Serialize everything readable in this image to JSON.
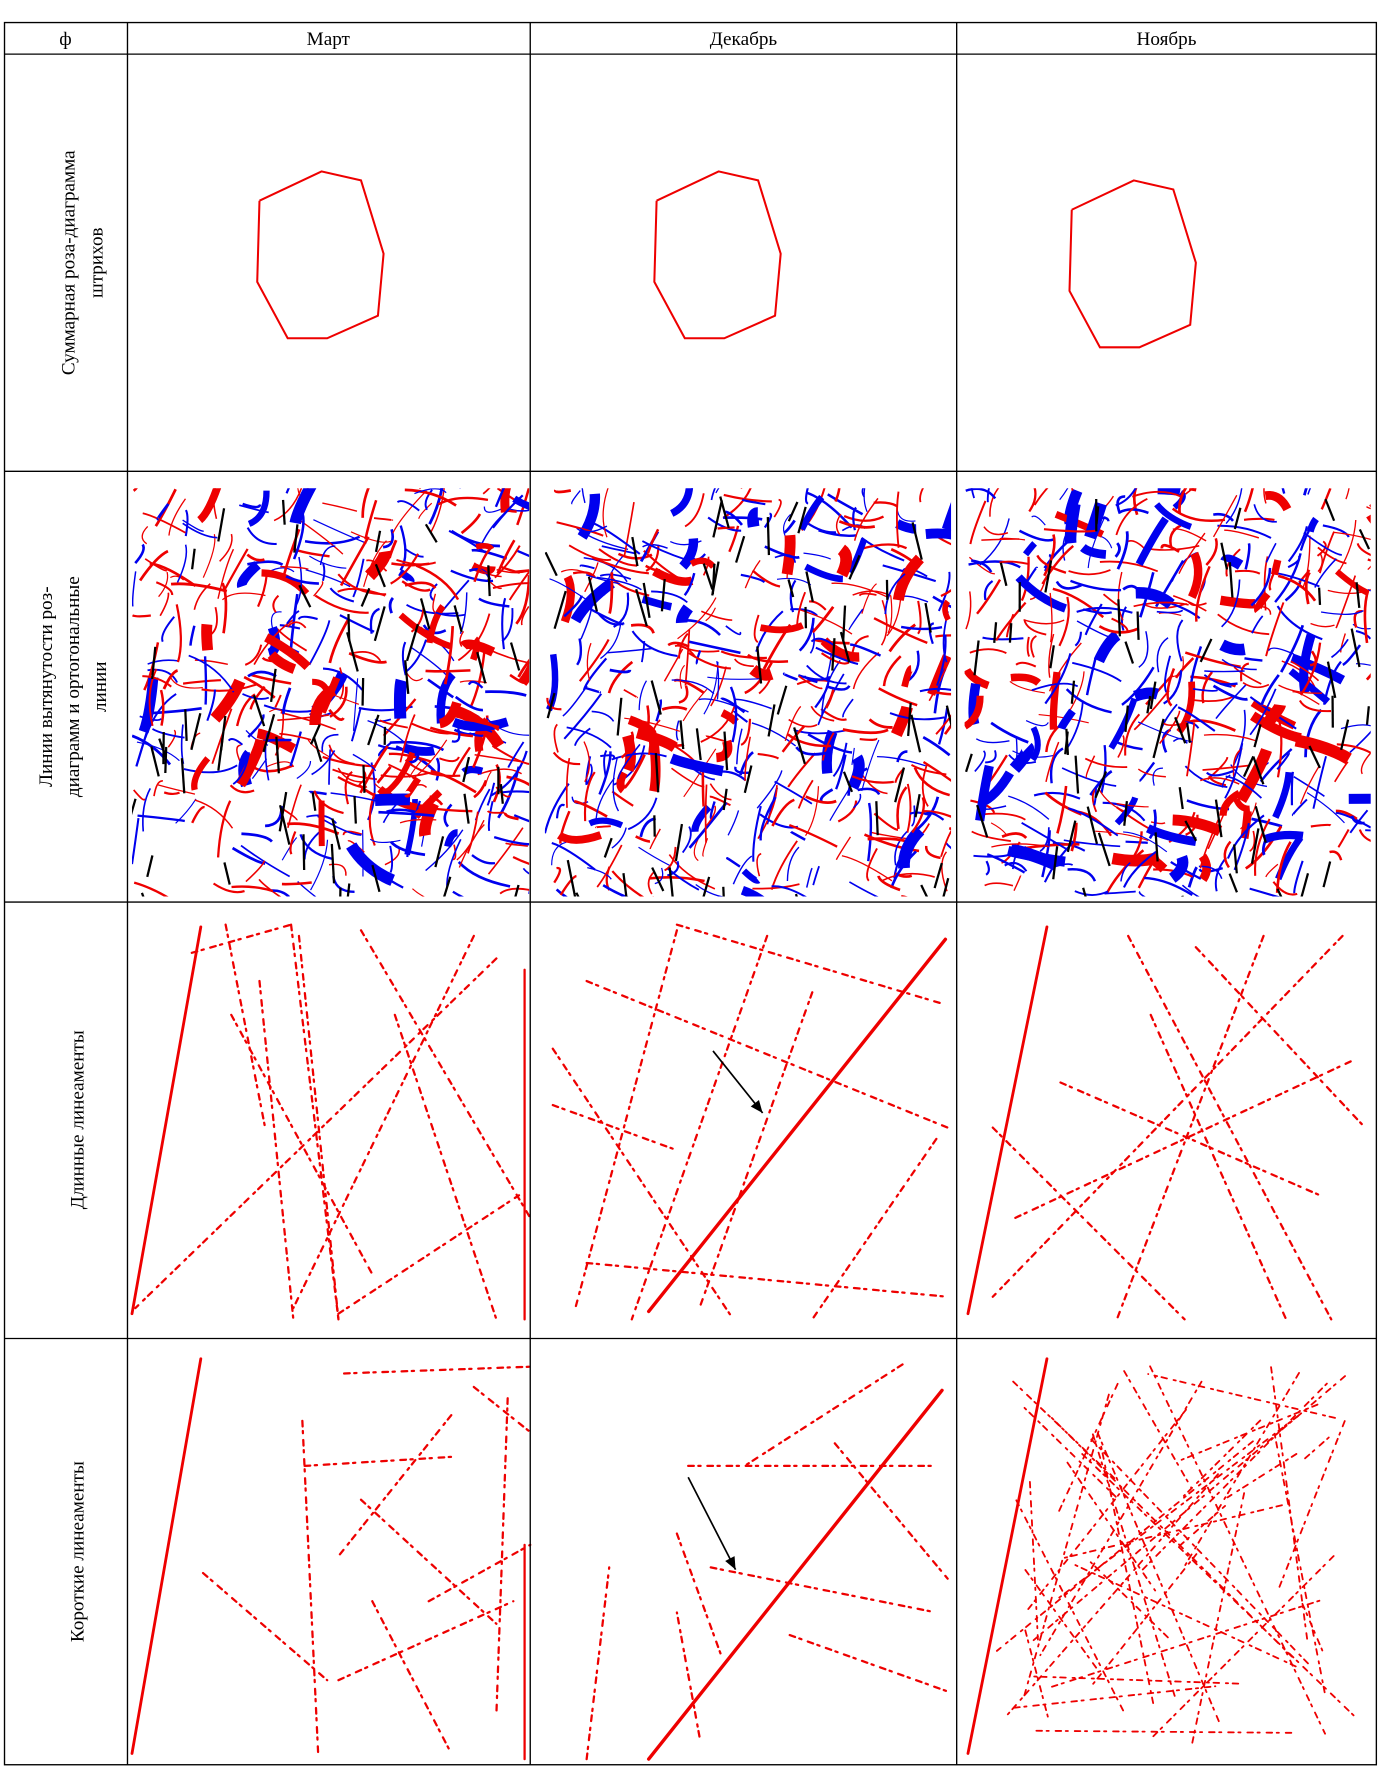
{
  "table": {
    "header": [
      "ф",
      "Март",
      "Декабрь",
      "Ноябрь"
    ],
    "rows": [
      {
        "label": [
          "Суммарная  роза-диаграмма",
          "штрихов"
        ]
      },
      {
        "label": [
          "Линии вытянутости роз-",
          "диаграмм и ортогональные",
          "линии"
        ]
      },
      {
        "label": [
          "Длинные линеаменты"
        ]
      },
      {
        "label": [
          "Короткие линеаменты"
        ]
      }
    ]
  }
}
